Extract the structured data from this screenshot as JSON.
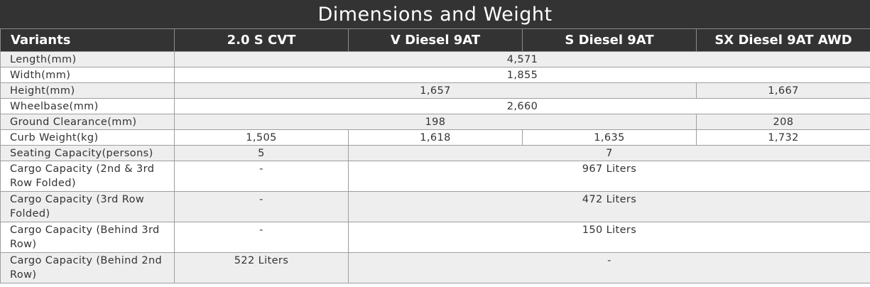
{
  "title": "Dimensions and Weight",
  "headers": [
    "Variants",
    "2.0 S CVT",
    "V Diesel 9AT",
    "S Diesel 9AT",
    "SX Diesel 9AT AWD"
  ],
  "rows": {
    "length": {
      "label": "Length(mm)",
      "all": "4,571"
    },
    "width": {
      "label": "Width(mm)",
      "all": "1,855"
    },
    "height": {
      "label": "Height(mm)",
      "first_three": "1,657",
      "sx": "1,667"
    },
    "wheelbase": {
      "label": "Wheelbase(mm)",
      "all": "2,660"
    },
    "ground_clearance": {
      "label": "Ground Clearance(mm)",
      "first_three": "198",
      "sx": "208"
    },
    "curb_weight": {
      "label": "Curb Weight(kg)",
      "s_cvt": "1,505",
      "v_diesel": "1,618",
      "s_diesel": "1,635",
      "sx": "1,732"
    },
    "seating": {
      "label": "Seating Capacity(persons)",
      "s_cvt": "5",
      "diesels": "7"
    },
    "cargo_2nd_3rd": {
      "label": "Cargo Capacity (2nd & 3rd Row Folded)",
      "s_cvt": "-",
      "diesels": "967 Liters"
    },
    "cargo_3rd": {
      "label": "Cargo Capacity (3rd Row Folded)",
      "s_cvt": "-",
      "diesels": "472 Liters"
    },
    "cargo_behind_3rd": {
      "label": "Cargo Capacity (Behind 3rd Row)",
      "s_cvt": "-",
      "diesels": "150 Liters"
    },
    "cargo_behind_2nd": {
      "label": "Cargo Capacity (Behind 2nd Row)",
      "s_cvt": "522 Liters",
      "diesels": "-"
    }
  }
}
